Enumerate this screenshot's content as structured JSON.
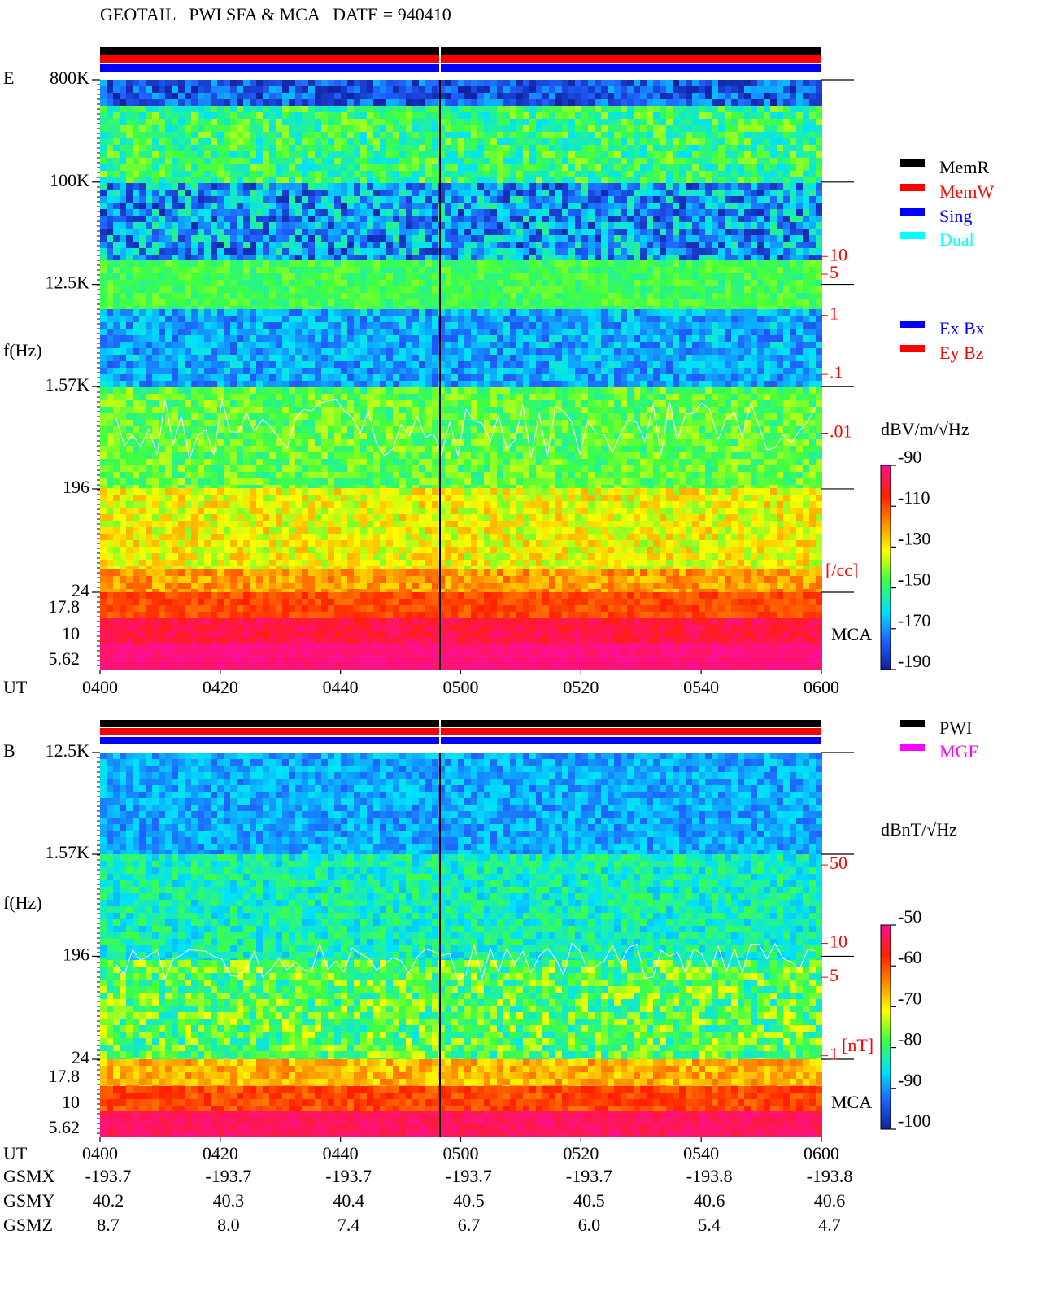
{
  "title": "GEOTAIL   PWI SFA & MCA   DATE = 940410",
  "chart_data": [
    {
      "type": "spectrogram",
      "panel_label": "E",
      "ylabel": "f(Hz)",
      "log_y": true,
      "ylim": [
        24,
        800000
      ],
      "yticks": [
        {
          "value": 800000,
          "label": "800K"
        },
        {
          "value": 100000,
          "label": "100K"
        },
        {
          "value": 12500,
          "label": "12.5K"
        },
        {
          "value": 1570,
          "label": "1.57K"
        },
        196,
        24
      ],
      "mca_label": "MCA",
      "mca_channels": [
        17.8,
        10,
        5.62
      ],
      "xlabel": "UT",
      "categories": [
        "0400",
        "0420",
        "0440",
        "0500",
        "0520",
        "0540",
        "0600"
      ],
      "y2label": "[/cc]",
      "y2lim": [
        2e-05,
        10000
      ],
      "y2ticks": [
        10,
        5,
        1,
        {
          "value": 0.1,
          "label": ".1"
        },
        {
          "value": 0.01,
          "label": ".01"
        }
      ],
      "colorbar": {
        "label": "dBV/m/√Hz",
        "lim": [
          -190,
          -90
        ],
        "ticks": [
          -90,
          -110,
          -130,
          -150,
          -170,
          -190
        ]
      },
      "legend": [
        {
          "name": "MemR",
          "color": "#000000"
        },
        {
          "name": "MemW",
          "color": "#ff0000"
        },
        {
          "name": "Sing",
          "color": "#0000ff"
        },
        {
          "name": "Dual",
          "color": "#00ffff"
        }
      ],
      "legend2": [
        {
          "name": "Ex Bx",
          "color": "#0000ff"
        },
        {
          "name": "Ey Bz",
          "color": "#ff0000"
        }
      ]
    },
    {
      "type": "spectrogram",
      "panel_label": "B",
      "ylabel": "f(Hz)",
      "log_y": true,
      "ylim": [
        24,
        12500
      ],
      "yticks": [
        {
          "value": 12500,
          "label": "12.5K"
        },
        {
          "value": 1570,
          "label": "1.57K"
        },
        196,
        24
      ],
      "mca_label": "MCA",
      "mca_channels": [
        17.8,
        10,
        5.62
      ],
      "xlabel": "UT",
      "categories": [
        "0400",
        "0420",
        "0440",
        "0500",
        "0520",
        "0540",
        "0600"
      ],
      "y2label": "[nT]",
      "y2lim": [
        0.93,
        500
      ],
      "y2ticks": [
        50,
        10,
        5,
        1
      ],
      "colorbar": {
        "label": "dBnT/√Hz",
        "lim": [
          -100,
          -50
        ],
        "ticks": [
          -50,
          -60,
          -70,
          -80,
          -90,
          -100
        ]
      },
      "legend": [
        {
          "name": "PWI",
          "color": "#000000"
        },
        {
          "name": "MGF",
          "color": "#ff00ff"
        }
      ]
    }
  ],
  "orbit": [
    {
      "label": "GSMX",
      "values": [
        -193.7,
        -193.7,
        -193.7,
        -193.7,
        -193.7,
        -193.8,
        -193.8
      ]
    },
    {
      "label": "GSMY",
      "values": [
        40.2,
        40.3,
        40.4,
        40.5,
        40.5,
        40.6,
        40.6
      ]
    },
    {
      "label": "GSMZ",
      "values": [
        8.7,
        {
          "value": 8,
          "label": "8.0"
        },
        7.4,
        6.7,
        {
          "value": 6,
          "label": "6.0"
        },
        5.4,
        4.7
      ]
    }
  ]
}
